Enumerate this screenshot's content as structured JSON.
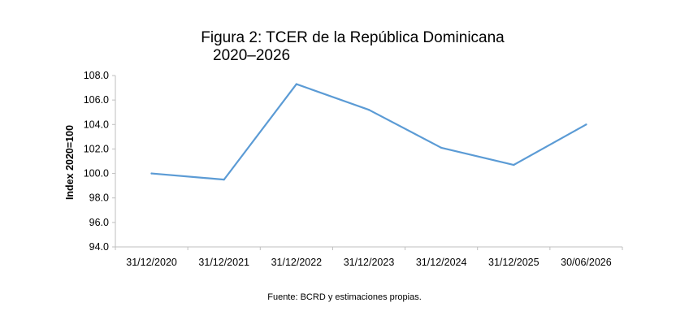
{
  "chart_data": {
    "type": "line",
    "title_line1": "Figura 2: TCER de la República Dominicana",
    "title_line2": "2020–2026",
    "ylabel": "Index 2020=100",
    "xlabel": "",
    "categories": [
      "31/12/2020",
      "31/12/2021",
      "31/12/2022",
      "31/12/2023",
      "31/12/2024",
      "31/12/2025",
      "30/06/2026"
    ],
    "series": [
      {
        "values": [
          100.0,
          99.5,
          107.3,
          105.2,
          102.1,
          100.7,
          104.0
        ]
      }
    ],
    "ylim": [
      94.0,
      108.0
    ],
    "yticks": [
      "94.0",
      "96.0",
      "98.0",
      "100.0",
      "102.0",
      "104.0",
      "106.0",
      "108.0"
    ],
    "grid": false,
    "line_color": "#5b9bd5",
    "axis_color": "#bfbfbf"
  },
  "source": "Fuente: BCRD y estimaciones propias."
}
